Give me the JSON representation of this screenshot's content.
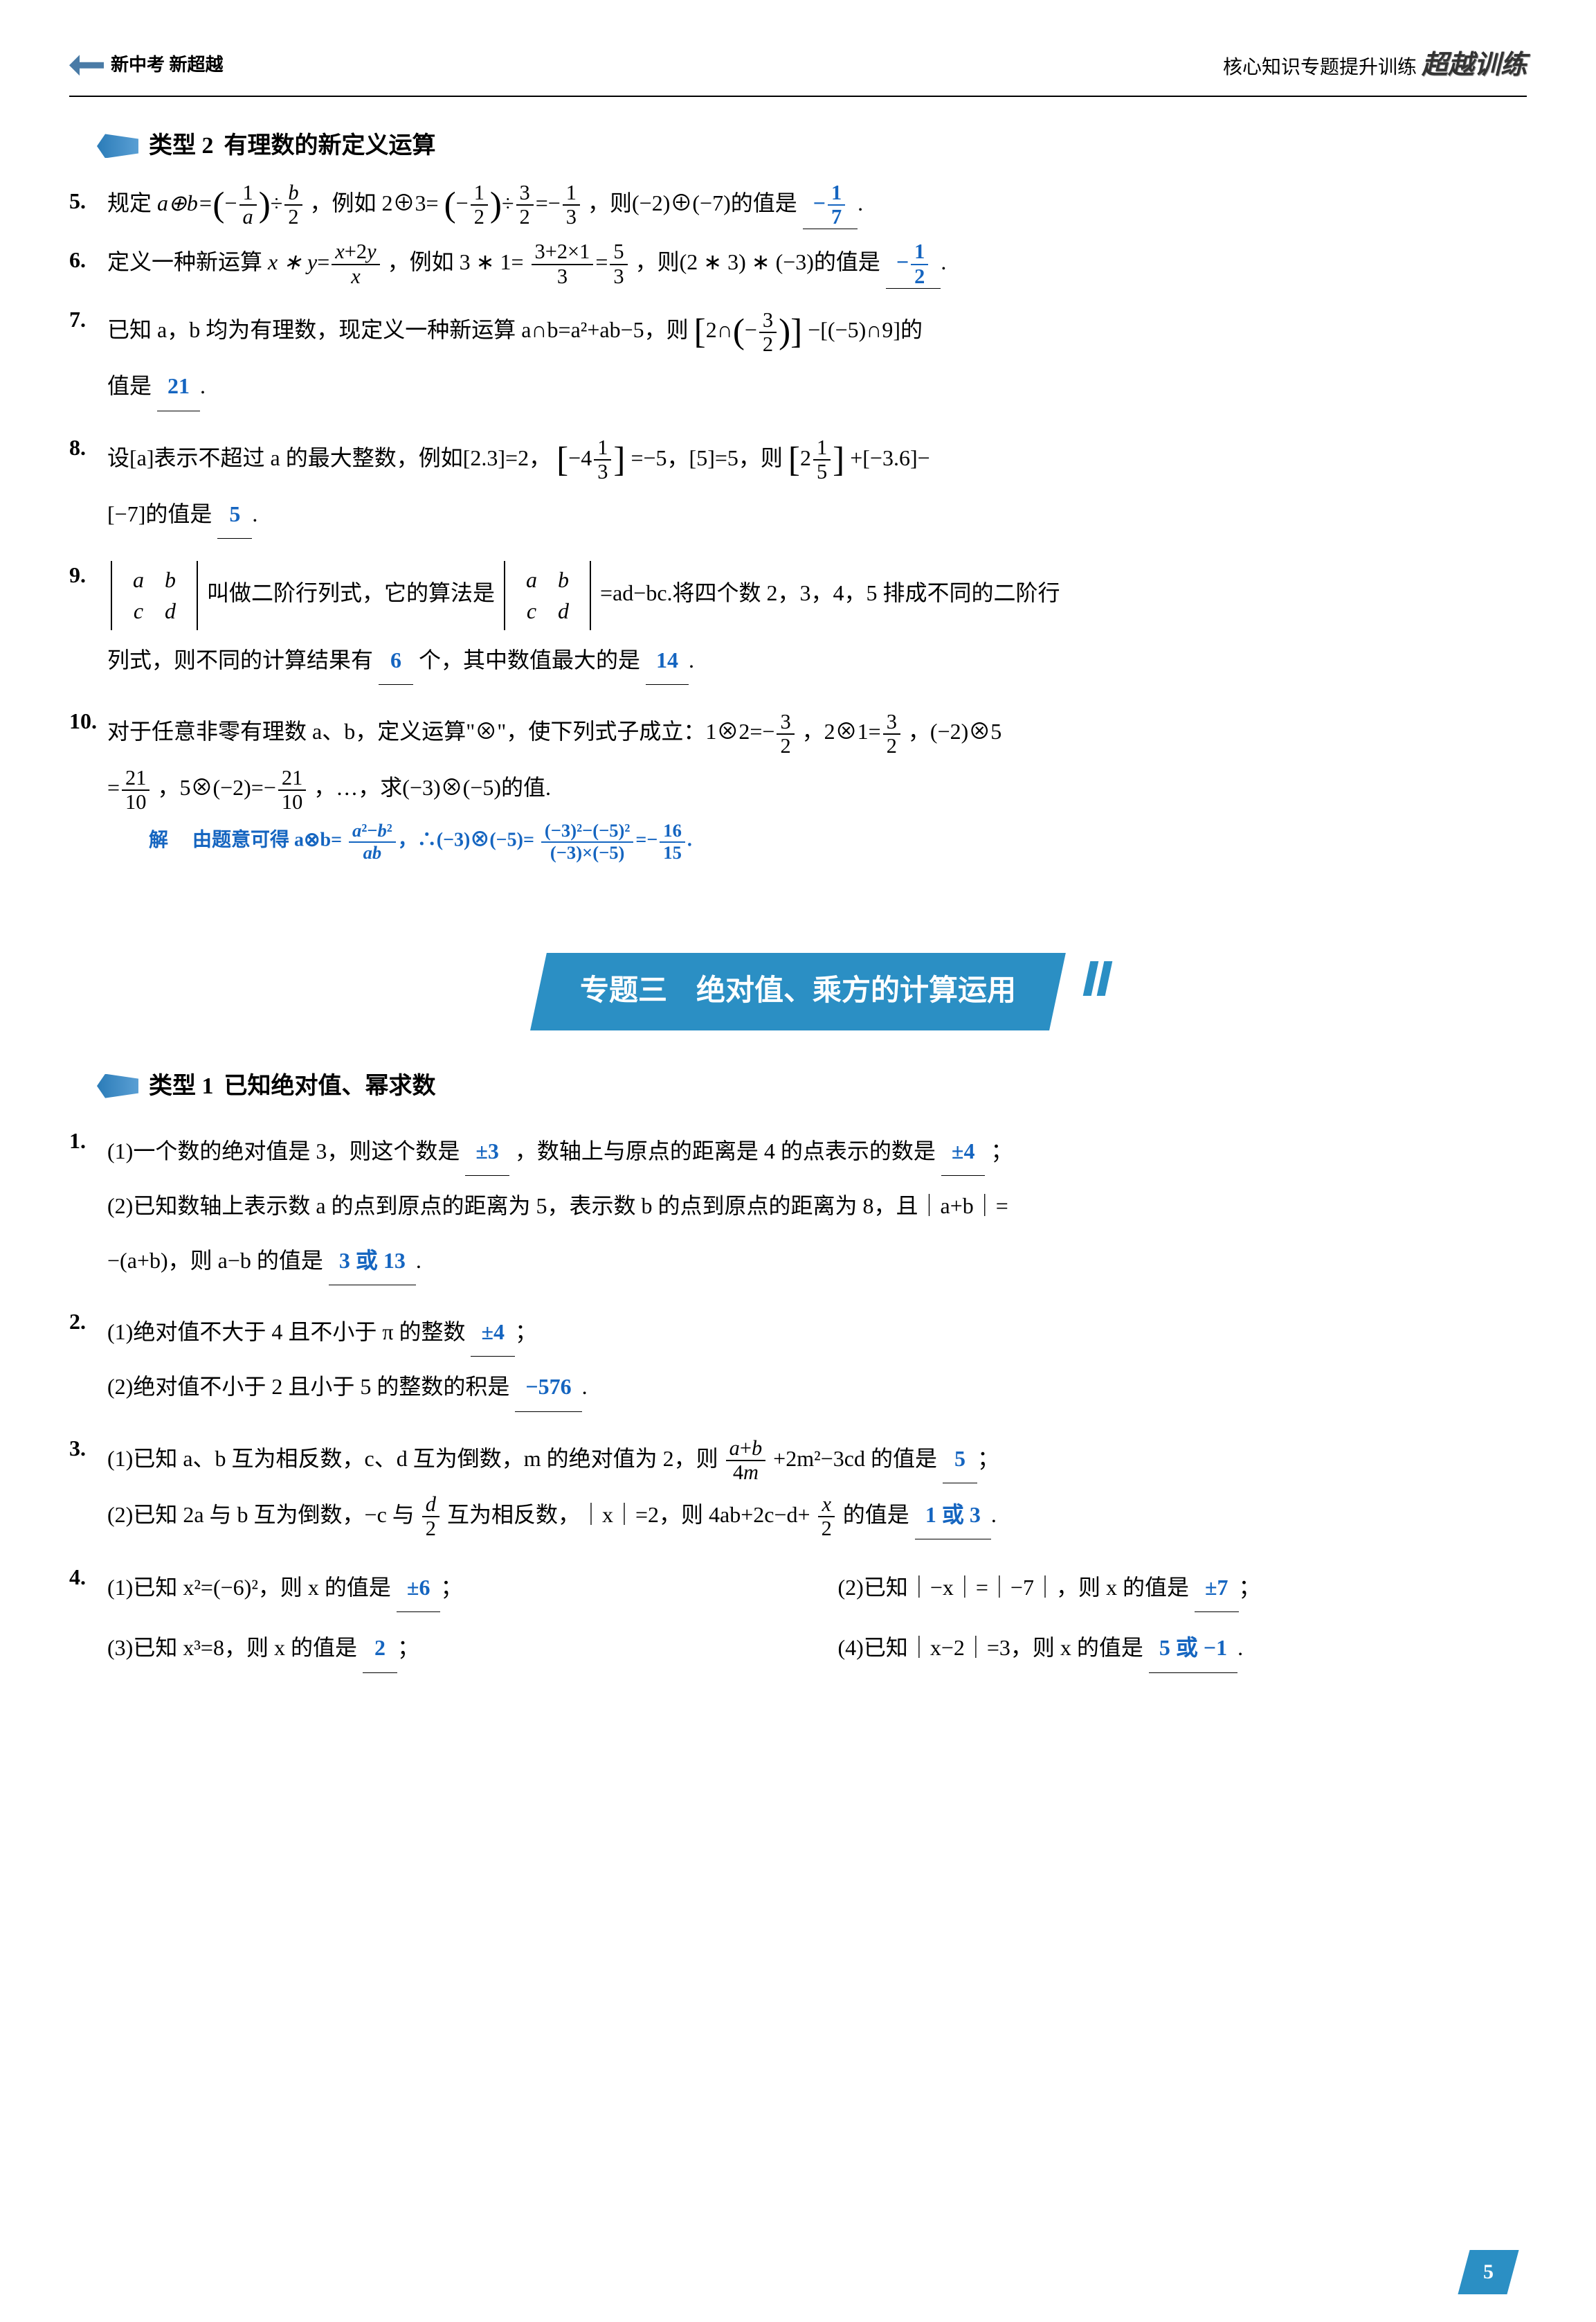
{
  "header": {
    "left": "新中考 新超越",
    "rightPrefix": "核心知识专题提升训练",
    "brand": "超越训练"
  },
  "section2": {
    "label": "类型 2",
    "title": "有理数的新定义运算"
  },
  "q5": {
    "num": "5.",
    "text1": "规定 ",
    "expr1": "a⊕b=",
    "text2": "，例如 2⊕3=",
    "text3": "，则(−2)⊕(−7)的值是",
    "ans": "− 1/7"
  },
  "q6": {
    "num": "6.",
    "text1": "定义一种新运算 ",
    "text2": "，例如 3 ∗ 1=",
    "text3": "，则(2 ∗ 3) ∗ (−3)的值是",
    "ans": "− 1/2"
  },
  "q7": {
    "num": "7.",
    "text1": "已知 a，b 均为有理数，现定义一种新运算 a∩b=a²+ab−5，则",
    "text2": "−[(−5)∩9]的",
    "text3": "值是",
    "ans": "21"
  },
  "q8": {
    "num": "8.",
    "text1": "设[a]表示不超过 a 的最大整数，例如[2.3]=2，",
    "text2": "=−5，[5]=5，则",
    "text3": "+[−3.6]−",
    "text4": "[−7]的值是",
    "ans": "5"
  },
  "q9": {
    "num": "9.",
    "text1": "叫做二阶行列式，它的算法是",
    "text2": "=ad−bc.将四个数 2，3，4，5 排成不同的二阶行",
    "text3": "列式，则不同的计算结果有",
    "ans1": "6",
    "text4": "个，其中数值最大的是",
    "ans2": "14"
  },
  "q10": {
    "num": "10.",
    "text1": "对于任意非零有理数 a、b，定义运算\"⊗\"，使下列式子成立：1⊗2=−",
    "text2": "，2⊗1=",
    "text3": "，(−2)⊗5",
    "text4": "=",
    "text5": "，5⊗(−2)=−",
    "text6": "，…，求(−3)⊗(−5)的值.",
    "sol_label": "解",
    "sol_text": "由题意可得 a⊗b="
  },
  "banner": "专题三　绝对值、乘方的计算运用",
  "section1": {
    "label": "类型 1",
    "title": "已知绝对值、幂求数"
  },
  "p1": {
    "num": "1.",
    "a1": "(1)一个数的绝对值是 3，则这个数是",
    "ans1": "±3",
    "a2": "，数轴上与原点的距离是 4 的点表示的数是",
    "ans2": "±4",
    "a3": "；",
    "b1": "(2)已知数轴上表示数 a 的点到原点的距离为 5，表示数 b 的点到原点的距离为 8，且｜a+b｜=",
    "b2": "−(a+b)，则 a−b 的值是",
    "ans3": "3 或 13"
  },
  "p2": {
    "num": "2.",
    "a1": "(1)绝对值不大于 4 且不小于 π 的整数",
    "ans1": "±4",
    "b1": "(2)绝对值不小于 2 且小于 5 的整数的积是",
    "ans2": "−576"
  },
  "p3": {
    "num": "3.",
    "a1": "(1)已知 a、b 互为相反数，c、d 互为倒数，m 的绝对值为 2，则",
    "a2": "+2m²−3cd 的值是",
    "ans1": "5",
    "b1": "(2)已知 2a 与 b 互为倒数，−c 与",
    "b2": "互为相反数，｜x｜=2，则 4ab+2c−d+",
    "b3": "的值是",
    "ans2": "1 或 3"
  },
  "p4": {
    "num": "4.",
    "a1": "(1)已知 x²=(−6)²，则 x 的值是",
    "ans1": "±6",
    "b1": "(2)已知｜−x｜=｜−7｜，则 x 的值是",
    "ans2": "±7",
    "c1": "(3)已知 x³=8，则 x 的值是",
    "ans3": "2",
    "d1": "(4)已知｜x−2｜=3，则 x 的值是",
    "ans4": "5 或 −1"
  },
  "pageNum": "5"
}
